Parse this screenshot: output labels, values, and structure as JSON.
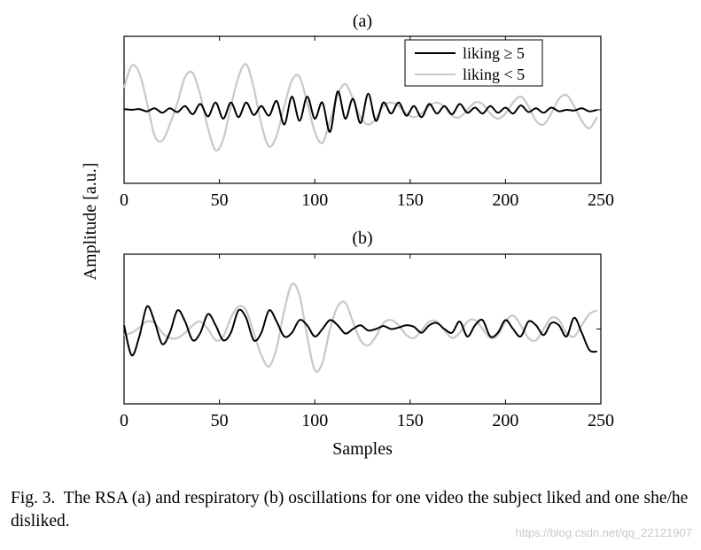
{
  "ylabel": "Amplitude [a.u.]",
  "xlabel": "Samples",
  "caption_label": "Fig. 3.",
  "caption_text": "The RSA (a) and respiratory (b) oscillations for one video the subject liked and one she/he disliked.",
  "watermark": "https://blog.csdn.net/qq_22121907",
  "colors": {
    "liking_high": "#000000",
    "liking_low": "#c8c8c8",
    "axes": "#000000"
  },
  "chart_data": [
    {
      "type": "line",
      "title": "(a)",
      "xlim": [
        0,
        250
      ],
      "ylim": [
        -1,
        1
      ],
      "xticks": [
        0,
        50,
        100,
        150,
        200,
        250
      ],
      "legend_position": "top-right",
      "legend": [
        "liking ≥ 5",
        "liking < 5"
      ],
      "series": [
        {
          "name": "liking ≥ 5",
          "color": "#000000",
          "x": [
            0,
            4,
            8,
            12,
            16,
            20,
            24,
            28,
            32,
            36,
            40,
            44,
            48,
            52,
            56,
            60,
            64,
            68,
            72,
            76,
            80,
            84,
            88,
            92,
            96,
            100,
            104,
            108,
            112,
            116,
            120,
            124,
            128,
            132,
            136,
            140,
            144,
            148,
            152,
            156,
            160,
            164,
            168,
            172,
            176,
            180,
            184,
            188,
            192,
            196,
            200,
            204,
            208,
            212,
            216,
            220,
            224,
            228,
            232,
            236,
            240,
            244,
            248
          ],
          "y": [
            0.01,
            0.0,
            0.01,
            -0.02,
            0.02,
            -0.04,
            0.02,
            -0.03,
            0.05,
            -0.06,
            0.08,
            -0.09,
            0.1,
            -0.12,
            0.1,
            -0.1,
            0.1,
            -0.07,
            0.05,
            -0.08,
            0.12,
            -0.2,
            0.18,
            -0.15,
            0.18,
            -0.12,
            0.1,
            -0.3,
            0.25,
            -0.12,
            0.15,
            -0.18,
            0.22,
            -0.15,
            0.1,
            -0.05,
            0.1,
            -0.08,
            0.05,
            -0.1,
            0.08,
            -0.05,
            0.05,
            -0.06,
            0.08,
            -0.04,
            0.03,
            -0.05,
            0.05,
            -0.04,
            0.03,
            -0.05,
            0.06,
            -0.03,
            0.02,
            -0.04,
            0.03,
            -0.02,
            0.0,
            -0.01,
            0.02,
            -0.02,
            0.0
          ]
        },
        {
          "name": "liking < 5",
          "color": "#c8c8c8",
          "x": [
            0,
            4,
            8,
            12,
            16,
            20,
            24,
            28,
            32,
            36,
            40,
            44,
            48,
            52,
            56,
            60,
            64,
            68,
            72,
            76,
            80,
            84,
            88,
            92,
            96,
            100,
            104,
            108,
            112,
            116,
            120,
            124,
            128,
            132,
            136,
            140,
            144,
            148,
            152,
            156,
            160,
            164,
            168,
            172,
            176,
            180,
            184,
            188,
            192,
            196,
            200,
            204,
            208,
            212,
            216,
            220,
            224,
            228,
            232,
            236,
            240,
            244,
            248
          ],
          "y": [
            0.3,
            0.6,
            0.5,
            0.1,
            -0.35,
            -0.42,
            -0.2,
            0.1,
            0.45,
            0.5,
            0.2,
            -0.25,
            -0.55,
            -0.4,
            0.05,
            0.45,
            0.62,
            0.3,
            -0.2,
            -0.5,
            -0.35,
            0.05,
            0.4,
            0.45,
            0.1,
            -0.3,
            -0.45,
            -0.15,
            0.2,
            0.35,
            0.15,
            -0.1,
            -0.2,
            -0.12,
            0.05,
            0.1,
            0.05,
            -0.05,
            -0.1,
            -0.05,
            0.05,
            0.1,
            0.04,
            -0.08,
            -0.1,
            0.0,
            0.1,
            0.08,
            -0.05,
            -0.12,
            -0.05,
            0.1,
            0.18,
            0.05,
            -0.15,
            -0.2,
            -0.05,
            0.15,
            0.2,
            0.05,
            -0.15,
            -0.25,
            -0.1
          ]
        }
      ]
    },
    {
      "type": "line",
      "title": "(b)",
      "xlim": [
        0,
        250
      ],
      "ylim": [
        -1,
        1
      ],
      "xticks": [
        0,
        50,
        100,
        150,
        200,
        250
      ],
      "series": [
        {
          "name": "liking ≥ 5",
          "color": "#000000",
          "x": [
            0,
            4,
            8,
            12,
            16,
            20,
            24,
            28,
            32,
            36,
            40,
            44,
            48,
            52,
            56,
            60,
            64,
            68,
            72,
            76,
            80,
            84,
            88,
            92,
            96,
            100,
            104,
            108,
            112,
            116,
            120,
            124,
            128,
            132,
            136,
            140,
            144,
            148,
            152,
            156,
            160,
            164,
            168,
            172,
            176,
            180,
            184,
            188,
            192,
            196,
            200,
            204,
            208,
            212,
            216,
            220,
            224,
            228,
            232,
            236,
            240,
            244,
            248
          ],
          "y": [
            0.05,
            -0.35,
            -0.1,
            0.3,
            0.1,
            -0.2,
            -0.05,
            0.25,
            0.1,
            -0.15,
            -0.05,
            0.2,
            0.05,
            -0.15,
            -0.05,
            0.25,
            0.15,
            -0.15,
            -0.05,
            0.25,
            0.1,
            -0.1,
            -0.05,
            0.12,
            0.05,
            -0.1,
            0.0,
            0.12,
            0.05,
            -0.06,
            0.0,
            0.05,
            -0.02,
            0.0,
            0.04,
            0.0,
            0.02,
            0.05,
            0.03,
            -0.05,
            0.05,
            0.08,
            0.0,
            -0.05,
            0.1,
            -0.1,
            0.05,
            0.12,
            -0.1,
            -0.05,
            0.12,
            0.0,
            -0.1,
            0.1,
            0.05,
            -0.08,
            0.08,
            0.05,
            -0.1,
            0.15,
            -0.05,
            -0.28,
            -0.3
          ]
        },
        {
          "name": "liking < 5",
          "color": "#c8c8c8",
          "x": [
            0,
            4,
            8,
            12,
            16,
            20,
            24,
            28,
            32,
            36,
            40,
            44,
            48,
            52,
            56,
            60,
            64,
            68,
            72,
            76,
            80,
            84,
            88,
            92,
            96,
            100,
            104,
            108,
            112,
            116,
            120,
            124,
            128,
            132,
            136,
            140,
            144,
            148,
            152,
            156,
            160,
            164,
            168,
            172,
            176,
            180,
            184,
            188,
            192,
            196,
            200,
            204,
            208,
            212,
            216,
            220,
            224,
            228,
            232,
            236,
            240,
            244,
            248
          ],
          "y": [
            -0.08,
            -0.05,
            0.02,
            0.1,
            0.08,
            -0.05,
            -0.12,
            -0.12,
            -0.05,
            0.05,
            0.1,
            0.0,
            -0.15,
            -0.1,
            0.15,
            0.3,
            0.25,
            -0.05,
            -0.35,
            -0.5,
            -0.25,
            0.25,
            0.6,
            0.45,
            -0.1,
            -0.55,
            -0.45,
            0.0,
            0.3,
            0.35,
            0.1,
            -0.15,
            -0.22,
            -0.1,
            0.08,
            0.12,
            0.05,
            -0.08,
            -0.12,
            -0.02,
            0.1,
            0.1,
            -0.02,
            -0.12,
            -0.05,
            0.1,
            0.12,
            0.0,
            -0.12,
            -0.08,
            0.1,
            0.18,
            0.05,
            -0.12,
            -0.15,
            0.0,
            0.15,
            0.12,
            -0.05,
            -0.1,
            0.05,
            0.2,
            0.25
          ]
        }
      ]
    }
  ]
}
